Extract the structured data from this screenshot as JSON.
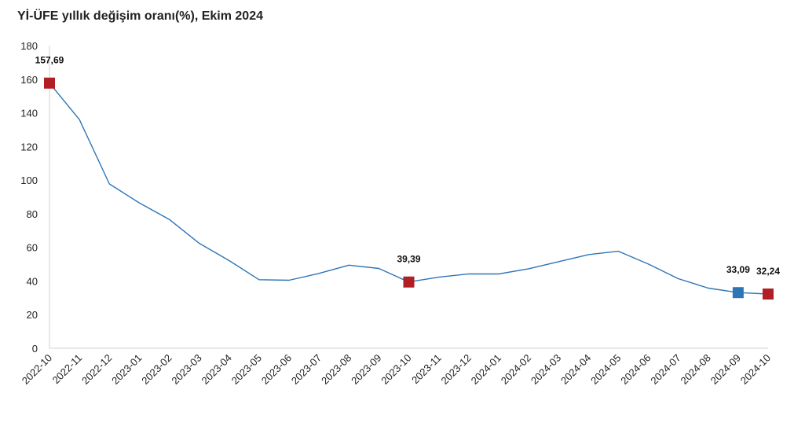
{
  "chart_data": {
    "type": "line",
    "title": "Yİ-ÜFE yıllık değişim oranı(%), Ekim 2024",
    "xlabel": "",
    "ylabel": "",
    "ylim": [
      0,
      180
    ],
    "yticks": [
      0,
      20,
      40,
      60,
      80,
      100,
      120,
      140,
      160,
      180
    ],
    "grid": false,
    "categories": [
      "2022-10",
      "2022-11",
      "2022-12",
      "2023-01",
      "2023-02",
      "2023-03",
      "2023-04",
      "2023-05",
      "2023-06",
      "2023-07",
      "2023-08",
      "2023-09",
      "2023-10",
      "2023-11",
      "2023-12",
      "2024-01",
      "2024-02",
      "2024-03",
      "2024-04",
      "2024-05",
      "2024-06",
      "2024-07",
      "2024-08",
      "2024-09",
      "2024-10"
    ],
    "series": [
      {
        "values": [
          157.69,
          136.02,
          97.72,
          86.46,
          76.61,
          62.45,
          52.11,
          40.76,
          40.42,
          44.5,
          49.41,
          47.44,
          39.39,
          42.25,
          44.22,
          44.2,
          47.29,
          51.47,
          55.66,
          57.68,
          50.09,
          41.37,
          35.75,
          33.09,
          32.24
        ],
        "color": "#2e75b6"
      }
    ],
    "highlighted_points": [
      {
        "index": 0,
        "label": "157,69",
        "color": "#b11e23"
      },
      {
        "index": 12,
        "label": "39,39",
        "color": "#b11e23"
      },
      {
        "index": 23,
        "label": "33,09",
        "color": "#2e75b6"
      },
      {
        "index": 24,
        "label": "32,24",
        "color": "#b11e23"
      }
    ]
  }
}
